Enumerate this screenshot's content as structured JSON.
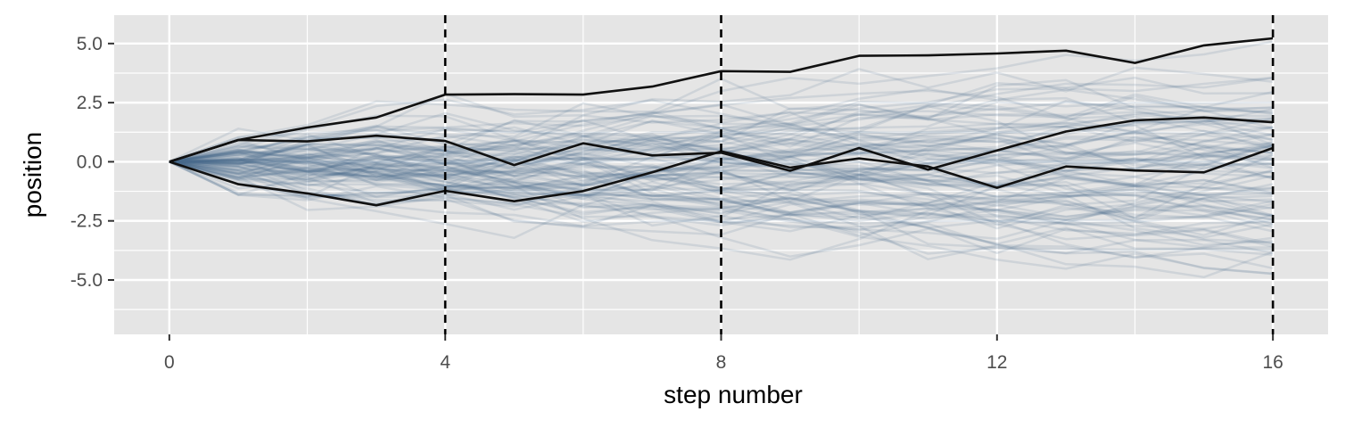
{
  "chart_data": {
    "type": "line",
    "title": "",
    "xlabel": "step number",
    "ylabel": "position",
    "xlim": [
      -0.8,
      16.8
    ],
    "ylim": [
      -7.3,
      6.2
    ],
    "x_ticks": [
      0,
      4,
      8,
      12,
      16
    ],
    "x_tick_labels": [
      "0",
      "4",
      "8",
      "12",
      "16"
    ],
    "x_minor_ticks": [
      2,
      6,
      10,
      14
    ],
    "y_ticks": [
      5.0,
      2.5,
      0.0,
      -2.5,
      -5.0
    ],
    "y_tick_labels": [
      "5.0",
      "2.5",
      "0.0",
      "-2.5",
      "-5.0"
    ],
    "y_minor_ticks": [
      3.75,
      1.25,
      -1.25,
      -3.75,
      -6.25
    ],
    "grid": true,
    "legend": "none",
    "vlines": [
      4,
      8,
      16
    ],
    "colors": {
      "panel_background": "#e5e5e5",
      "grid": "#ffffff",
      "background_walks": "#4a6d8c",
      "highlight_walks": "#111111",
      "vlines": "#000000",
      "tick_text": "#4d4d4d"
    },
    "x": [
      0,
      1,
      2,
      3,
      4,
      5,
      6,
      7,
      8,
      9,
      10,
      11,
      12,
      13,
      14,
      15,
      16
    ],
    "background_walk_count": 100,
    "highlighted_series": [
      {
        "values": [
          0,
          0.92,
          1.45,
          1.87,
          2.84,
          2.86,
          2.84,
          3.18,
          3.83,
          3.8,
          4.48,
          4.5,
          4.58,
          4.7,
          4.18,
          4.92,
          5.22
        ]
      },
      {
        "values": [
          0,
          0.92,
          0.86,
          1.1,
          0.88,
          -0.14,
          0.78,
          0.27,
          0.38,
          -0.38,
          0.58,
          -0.33,
          0.48,
          1.28,
          1.75,
          1.87,
          1.67
        ]
      },
      {
        "values": [
          0,
          -0.95,
          -1.34,
          -1.84,
          -1.23,
          -1.67,
          -1.24,
          -0.45,
          0.44,
          -0.25,
          0.14,
          -0.2,
          -1.1,
          -0.2,
          -0.37,
          -0.45,
          0.58
        ]
      }
    ]
  }
}
